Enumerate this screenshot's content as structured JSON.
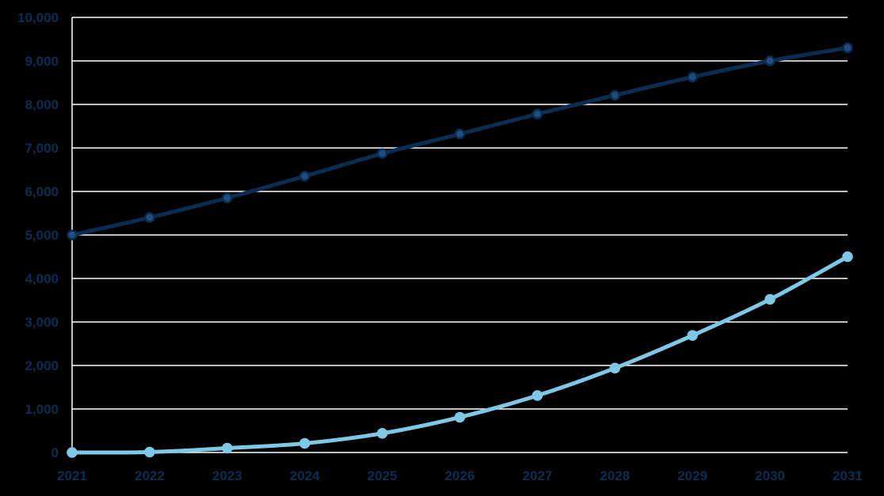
{
  "chart_data": {
    "type": "line",
    "title": "",
    "xlabel": "",
    "ylabel": "",
    "x": [
      "2021",
      "2022",
      "2023",
      "2024",
      "2025",
      "2026",
      "2027",
      "2028",
      "2029",
      "2030",
      "2031"
    ],
    "ylim": [
      0,
      10000
    ],
    "yticks": [
      0,
      1000,
      2000,
      3000,
      4000,
      5000,
      6000,
      7000,
      8000,
      9000,
      10000
    ],
    "ytick_labels": [
      "0",
      "1,000",
      "2,000",
      "3,000",
      "4,000",
      "5,000",
      "6,000",
      "7,000",
      "8,000",
      "9,000",
      "10,000"
    ],
    "grid": true,
    "legend": "none",
    "series": [
      {
        "color": "#0c2d52",
        "marker_center": "#1f4f80",
        "values": [
          5000,
          5400,
          5850,
          6350,
          6870,
          7320,
          7780,
          8210,
          8630,
          9000,
          9300
        ]
      },
      {
        "color": "#7ec8e6",
        "marker_center": "#7ec8e6",
        "values": [
          0,
          10,
          100,
          210,
          440,
          810,
          1310,
          1940,
          2690,
          3520,
          4500
        ]
      }
    ],
    "colors": {
      "background": "#000000",
      "gridline": "#ffffff",
      "tick_text": "#0c2d52"
    }
  }
}
